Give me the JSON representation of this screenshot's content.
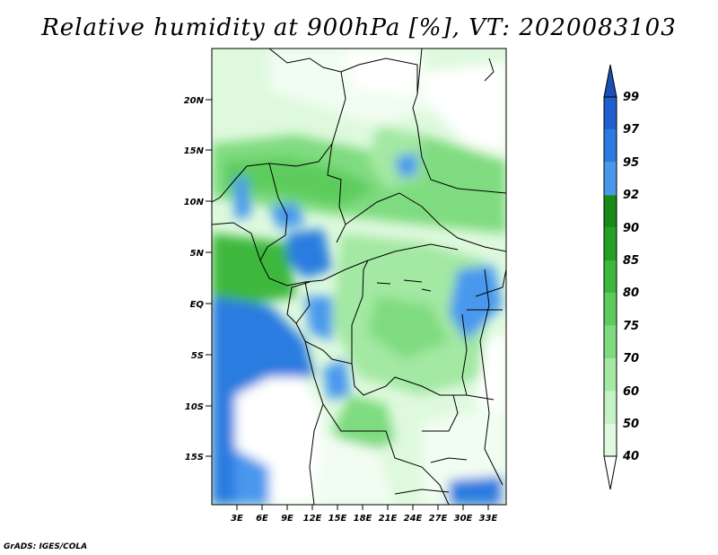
{
  "title": "Relative humidity at 900hPa [%], VT: 2020083103",
  "credit": "GrADS: IGES/COLA",
  "map": {
    "lat_ticks": [
      "20N",
      "15N",
      "10N",
      "5N",
      "EQ",
      "5S",
      "10S",
      "15S"
    ],
    "lon_ticks": [
      "3E",
      "6E",
      "9E",
      "12E",
      "15E",
      "18E",
      "21E",
      "24E",
      "27E",
      "30E",
      "33E"
    ]
  },
  "colorbar": {
    "labels": [
      "99",
      "97",
      "95",
      "92",
      "90",
      "85",
      "80",
      "75",
      "70",
      "60",
      "50",
      "40"
    ],
    "colors": [
      "#1f5fd0",
      "#2a7be0",
      "#4a98ee",
      "#178a17",
      "#24a024",
      "#3cb83c",
      "#5dcc5d",
      "#7fdb7f",
      "#a3e8a3",
      "#c4f2c4",
      "#def9de",
      "#f2fdf2"
    ],
    "top_arrow_color": "#1a4fb5",
    "bottom_arrow_color": "#ffffff"
  }
}
